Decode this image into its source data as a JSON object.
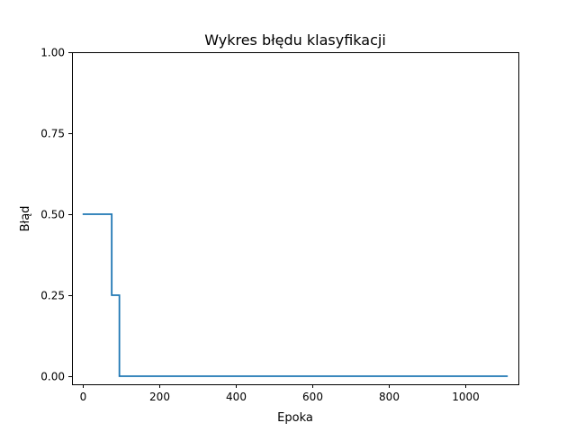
{
  "chart_data": {
    "type": "line",
    "title": "Wykres błędu klasyfikacji",
    "xlabel": "Epoka",
    "ylabel": "Błąd",
    "xlim": [
      -27.75,
      1137.75
    ],
    "ylim": [
      -0.025,
      1.0
    ],
    "xticks": [
      0,
      200,
      400,
      600,
      800,
      1000
    ],
    "xtick_labels": [
      "0",
      "200",
      "400",
      "600",
      "800",
      "1000"
    ],
    "yticks": [
      0.0,
      0.25,
      0.5,
      0.75,
      1.0
    ],
    "ytick_labels": [
      "0.00",
      "0.25",
      "0.50",
      "0.75",
      "1.00"
    ],
    "grid": false,
    "legend": "none",
    "series": [
      {
        "color": "#1f77b4",
        "step": "post",
        "x": [
          0,
          76,
          96,
          1110
        ],
        "y": [
          0.5,
          0.25,
          0.0,
          0.0
        ]
      }
    ]
  }
}
